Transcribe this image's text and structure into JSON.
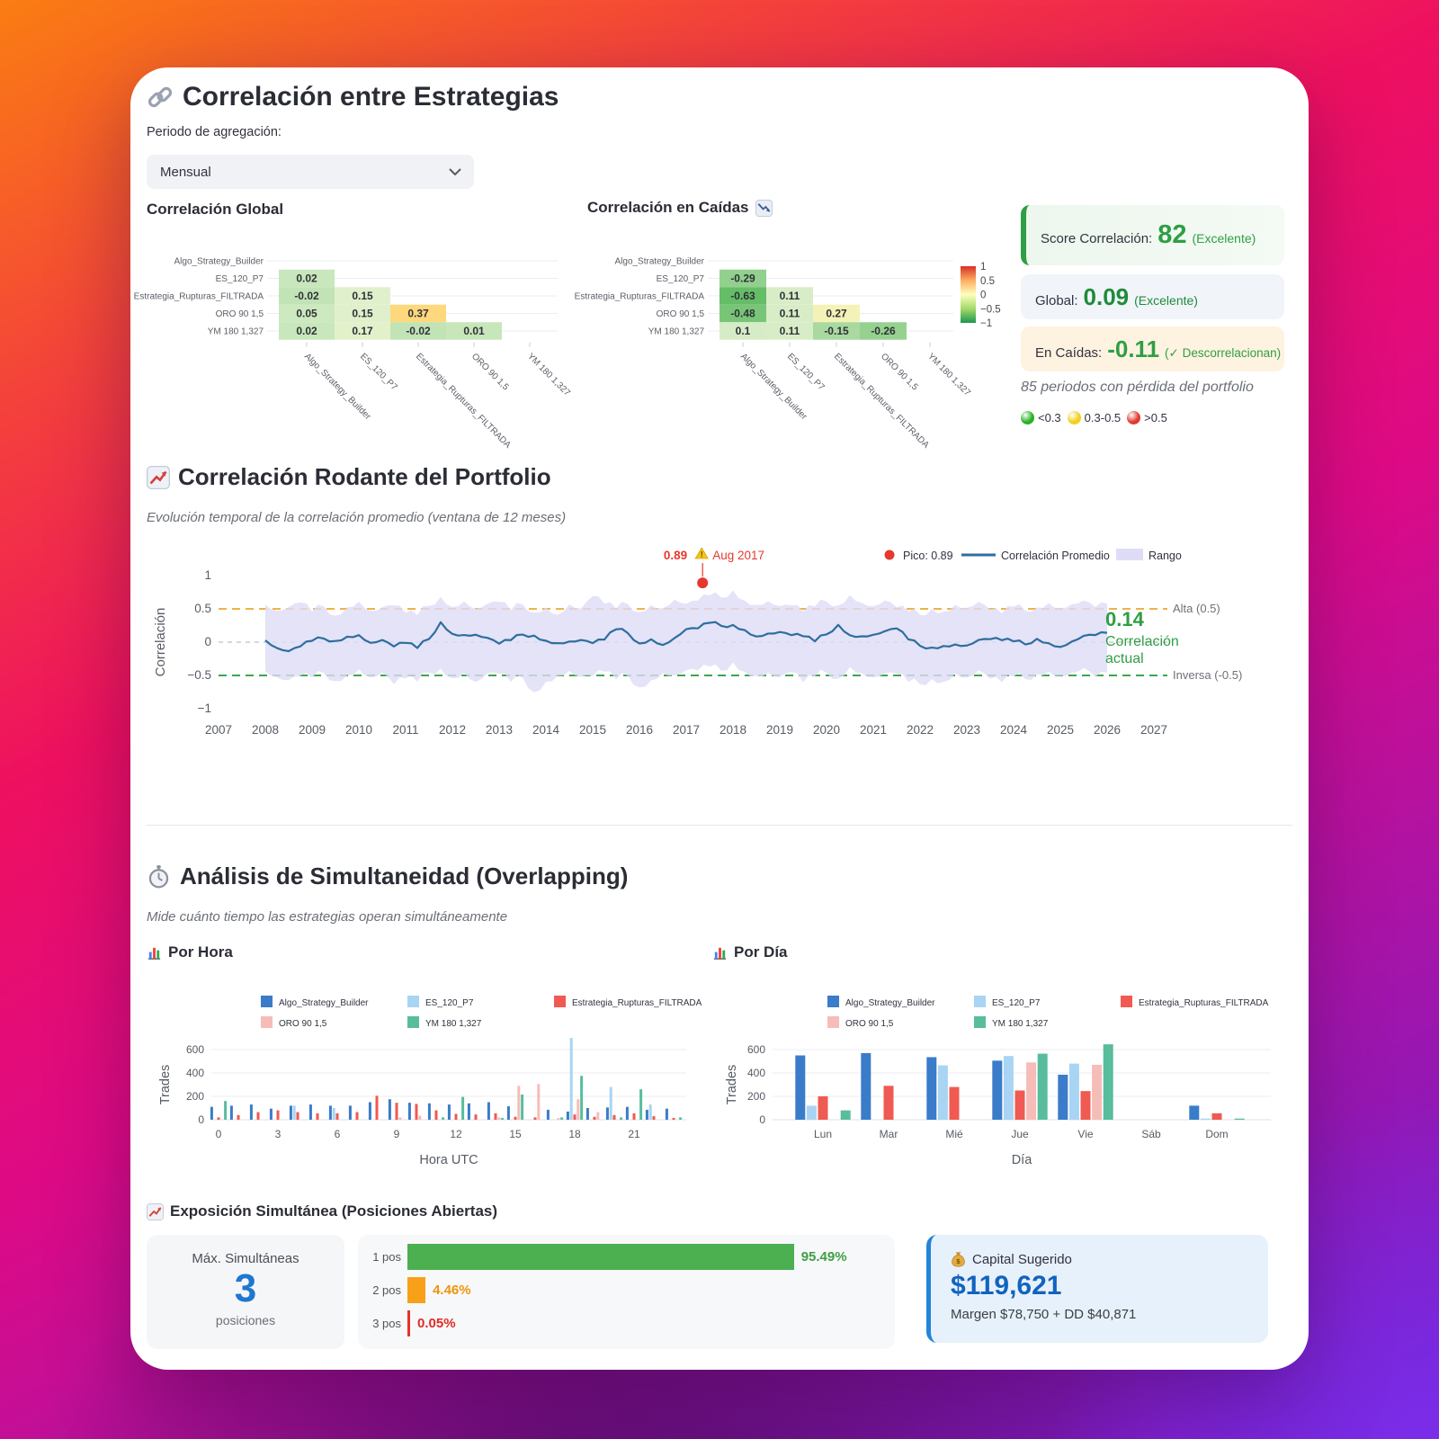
{
  "page": {
    "title": "Correlación entre Estrategias"
  },
  "aggregation": {
    "label": "Periodo de agregación:",
    "value": "Mensual"
  },
  "score_panel": {
    "score": {
      "label": "Score Correlación:",
      "value": "82",
      "qualifier": "(Excelente)",
      "accent": "#2f9e44",
      "bg": "#edf7ee"
    },
    "global": {
      "label": "Global:",
      "value": "0.09",
      "qualifier": "(Excelente)",
      "accent": "#1f8b3b",
      "bg": "#f1f4f9"
    },
    "drawdown": {
      "label": "En Caídas:",
      "value": "-0.11",
      "qualifier": "(✓ Descorrelacionan)",
      "accent": "#2f9e44",
      "bg": "#fdf3e0"
    },
    "note": "85 periodos con pérdida del portfolio",
    "legend": [
      {
        "label": "<0.3",
        "color": "#27b227"
      },
      {
        "label": "0.3-0.5",
        "color": "#f2cf1d"
      },
      {
        "label": ">0.5",
        "color": "#e03a2e"
      }
    ]
  },
  "sections": {
    "rolling": {
      "title": "Correlación Rodante del Portfolio",
      "subtitle": "Evolución temporal de la correlación promedio (ventana de 12 meses)"
    },
    "overlap": {
      "title": "Análisis de Simultaneidad (Overlapping)",
      "subtitle": "Mide cuánto tiempo las estrategias operan simultáneamente",
      "hour_title": "Por Hora",
      "day_title": "Por Día"
    },
    "exposure": {
      "title": "Exposición Simultánea (Posiciones Abiertas)"
    }
  },
  "max_card": {
    "label": "Máx. Simultáneas",
    "value": "3",
    "sublabel": "posiciones",
    "value_color": "#1f77d0"
  },
  "capital_card": {
    "label": "Capital Sugerido",
    "value": "$119,621",
    "detail": "Margen $78,750 + DD $40,871",
    "accent": "#2584d8",
    "bg": "#e7f1fb",
    "value_color": "#1263c0"
  },
  "chart_data": [
    {
      "id": "correlation_matrix_global",
      "type": "heatmap",
      "title": "Correlación Global",
      "labels": [
        "Algo_Strategy_Builder",
        "ES_120_P7",
        "Estrategia_Rupturas_FILTRADA",
        "ORO 90 1,5",
        "YM 180 1,327"
      ],
      "rows": [
        [],
        [
          0.02
        ],
        [
          -0.02,
          0.15
        ],
        [
          0.05,
          0.15,
          0.37
        ],
        [
          0.02,
          0.17,
          -0.02,
          0.01
        ]
      ]
    },
    {
      "id": "correlation_matrix_drawdown",
      "type": "heatmap",
      "title": "Correlación en Caídas",
      "labels": [
        "Algo_Strategy_Builder",
        "ES_120_P7",
        "Estrategia_Rupturas_FILTRADA",
        "ORO 90 1,5",
        "YM 180 1,327"
      ],
      "rows": [
        [],
        [
          -0.29
        ],
        [
          -0.63,
          0.11
        ],
        [
          -0.48,
          0.11,
          0.27
        ],
        [
          0.1,
          0.11,
          -0.15,
          -0.26
        ]
      ],
      "colorbar": {
        "ticks": [
          "1",
          "0.5",
          "0",
          "−0.5",
          "−1"
        ]
      }
    },
    {
      "id": "rolling_correlation",
      "type": "line",
      "ylabel": "Correlación",
      "x_start": 2008,
      "x_step": 0.25,
      "x_ticks": [
        2007,
        2008,
        2009,
        2010,
        2011,
        2012,
        2013,
        2014,
        2015,
        2016,
        2017,
        2018,
        2019,
        2020,
        2021,
        2022,
        2023,
        2024,
        2025,
        2026,
        2027
      ],
      "y_ticks": [
        1,
        0.5,
        0,
        -0.5,
        -1
      ],
      "avg": [
        0.02,
        -0.1,
        -0.15,
        -0.05,
        0.03,
        0.06,
        0.02,
        0.08,
        0.1,
        -0.02,
        0.02,
        -0.05,
        0.0,
        -0.08,
        0.05,
        0.3,
        0.12,
        0.1,
        0.1,
        0.05,
        -0.01,
        0.04,
        0.12,
        0.1,
        0.02,
        -0.02,
        0.0,
        0.02,
        0.0,
        0.05,
        0.2,
        0.14,
        -0.02,
        0.04,
        -0.05,
        0.05,
        0.18,
        0.22,
        0.3,
        0.25,
        0.26,
        0.18,
        0.08,
        0.12,
        0.14,
        0.12,
        0.1,
        0.02,
        0.12,
        0.26,
        0.1,
        0.08,
        0.1,
        0.15,
        0.22,
        0.05,
        -0.05,
        -0.08,
        -0.06,
        -0.04,
        -0.06,
        0.02,
        0.06,
        0.04,
        0.02,
        -0.03,
        0.05,
        -0.02,
        -0.08,
        0.0,
        0.08,
        0.12,
        0.14
      ],
      "hi": [
        0.55,
        0.45,
        0.5,
        0.62,
        0.48,
        0.55,
        0.4,
        0.52,
        0.6,
        0.45,
        0.5,
        0.58,
        0.46,
        0.42,
        0.55,
        0.68,
        0.52,
        0.6,
        0.48,
        0.55,
        0.63,
        0.5,
        0.58,
        0.45,
        0.52,
        0.4,
        0.55,
        0.48,
        0.72,
        0.6,
        0.52,
        0.58,
        0.45,
        0.55,
        0.5,
        0.62,
        0.55,
        0.65,
        0.72,
        0.68,
        0.78,
        0.62,
        0.55,
        0.6,
        0.52,
        0.58,
        0.48,
        0.55,
        0.62,
        0.55,
        0.7,
        0.58,
        0.52,
        0.6,
        0.55,
        0.48,
        0.42,
        0.5,
        0.45,
        0.55,
        0.5,
        0.58,
        0.52,
        0.45,
        0.55,
        0.48,
        0.52,
        0.58,
        0.5,
        0.55,
        0.6,
        0.55,
        0.58
      ],
      "lo": [
        -0.45,
        -0.55,
        -0.6,
        -0.48,
        -0.52,
        -0.45,
        -0.58,
        -0.5,
        -0.42,
        -0.55,
        -0.48,
        -0.6,
        -0.52,
        -0.58,
        -0.45,
        -0.4,
        -0.55,
        -0.48,
        -0.62,
        -0.5,
        -0.45,
        -0.58,
        -0.52,
        -0.75,
        -0.6,
        -0.52,
        -0.45,
        -0.55,
        -0.48,
        -0.42,
        -0.55,
        -0.5,
        -0.68,
        -0.58,
        -0.48,
        -0.52,
        -0.45,
        -0.4,
        -0.35,
        -0.42,
        -0.3,
        -0.45,
        -0.52,
        -0.48,
        -0.55,
        -0.42,
        -0.58,
        -0.5,
        -0.45,
        -0.55,
        -0.38,
        -0.48,
        -0.55,
        -0.5,
        -0.45,
        -0.58,
        -0.62,
        -0.55,
        -0.6,
        -0.48,
        -0.55,
        -0.45,
        -0.52,
        -0.58,
        -0.5,
        -0.55,
        -0.48,
        -0.45,
        -0.52,
        -0.48,
        -0.42,
        -0.5,
        -0.46
      ],
      "peak": {
        "x": 2017.35,
        "y": 0.89,
        "value_label": "0.89",
        "date_label": "Aug 2017",
        "color": "#e5392e"
      },
      "current": {
        "value": "0.14",
        "line1": "Correlación",
        "line2": "actual",
        "color": "#2f9e44"
      },
      "hlines": [
        {
          "y": 0.5,
          "label": "Alta (0.5)",
          "color": "#f0b14a"
        },
        {
          "y": 0,
          "label": "",
          "color": "#c9c9d2"
        },
        {
          "y": -0.5,
          "label": "Inversa (-0.5)",
          "color": "#3fa64b"
        }
      ],
      "legend": [
        {
          "kind": "dot",
          "label": "Pico: 0.89",
          "color": "#e5392e"
        },
        {
          "kind": "line",
          "label": "Correlación Promedio",
          "color": "#2e6e9e"
        },
        {
          "kind": "band",
          "label": "Rango",
          "color": "#dedcf6"
        }
      ],
      "line_color": "#2e6e9e",
      "band_color": "#dedcf6"
    },
    {
      "id": "overlap_by_hour",
      "type": "bar",
      "xlabel": "Hora UTC",
      "ylabel": "Trades",
      "x_ticks": [
        0,
        3,
        6,
        9,
        12,
        15,
        18,
        21
      ],
      "y_ticks": [
        0,
        200,
        400,
        600
      ],
      "series": [
        {
          "name": "Algo_Strategy_Builder",
          "color": "#3a7cc9",
          "values": [
            110,
            120,
            130,
            95,
            120,
            130,
            120,
            120,
            150,
            175,
            145,
            140,
            130,
            140,
            150,
            115,
            0,
            85,
            70,
            100,
            105,
            110,
            85,
            95
          ]
        },
        {
          "name": "ES_120_P7",
          "color": "#a9d4f3",
          "values": [
            0,
            0,
            0,
            0,
            120,
            0,
            100,
            0,
            0,
            0,
            0,
            0,
            0,
            0,
            0,
            0,
            0,
            0,
            700,
            0,
            280,
            0,
            130,
            0
          ]
        },
        {
          "name": "Estrategia_Rupturas_FILTRADA",
          "color": "#ef5a52",
          "values": [
            20,
            40,
            65,
            80,
            65,
            55,
            55,
            65,
            205,
            145,
            135,
            80,
            50,
            45,
            55,
            25,
            20,
            0,
            45,
            25,
            40,
            55,
            30,
            15
          ]
        },
        {
          "name": "ORO 90 1,5",
          "color": "#f6bcb8",
          "values": [
            0,
            0,
            0,
            0,
            0,
            0,
            0,
            0,
            0,
            20,
            35,
            0,
            0,
            0,
            20,
            290,
            305,
            15,
            175,
            65,
            0,
            0,
            0,
            0
          ]
        },
        {
          "name": "YM 180 1,327",
          "color": "#57bd9d",
          "values": [
            160,
            0,
            0,
            0,
            0,
            0,
            0,
            0,
            0,
            0,
            0,
            20,
            195,
            0,
            15,
            215,
            0,
            20,
            375,
            0,
            20,
            260,
            0,
            20
          ]
        }
      ]
    },
    {
      "id": "overlap_by_day",
      "type": "bar",
      "xlabel": "Día",
      "ylabel": "Trades",
      "categories": [
        "Lun",
        "Mar",
        "Mié",
        "Jue",
        "Vie",
        "Sáb",
        "Dom"
      ],
      "y_ticks": [
        0,
        200,
        400,
        600
      ],
      "series": [
        {
          "name": "Algo_Strategy_Builder",
          "color": "#3a7cc9",
          "values": [
            550,
            570,
            535,
            505,
            385,
            0,
            120
          ]
        },
        {
          "name": "ES_120_P7",
          "color": "#a9d4f3",
          "values": [
            120,
            0,
            465,
            545,
            480,
            0,
            10
          ]
        },
        {
          "name": "Estrategia_Rupturas_FILTRADA",
          "color": "#ef5a52",
          "values": [
            200,
            290,
            280,
            250,
            245,
            0,
            55
          ]
        },
        {
          "name": "ORO 90 1,5",
          "color": "#f6bcb8",
          "values": [
            0,
            0,
            0,
            490,
            470,
            0,
            0
          ]
        },
        {
          "name": "YM 180 1,327",
          "color": "#57bd9d",
          "values": [
            80,
            0,
            0,
            565,
            645,
            0,
            10
          ]
        }
      ]
    },
    {
      "id": "simultaneous_exposure",
      "type": "bar",
      "orientation": "horizontal",
      "rows": [
        {
          "label": "1 pos",
          "value": 95.49,
          "display": "95.49%",
          "color": "#4caf50",
          "text_color": "#3f9e45"
        },
        {
          "label": "2 pos",
          "value": 4.46,
          "display": "4.46%",
          "color": "#f9a01b",
          "text_color": "#ef940a"
        },
        {
          "label": "3 pos",
          "value": 0.05,
          "display": "0.05%",
          "color": "#e5332c",
          "text_color": "#df2b24"
        }
      ]
    }
  ]
}
